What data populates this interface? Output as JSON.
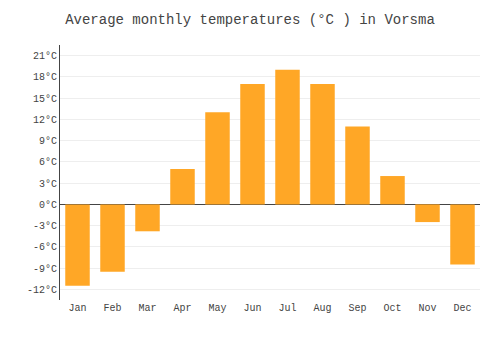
{
  "chart_data": {
    "type": "bar",
    "title": "Average monthly temperatures (°C ) in Vorsma",
    "categories": [
      "Jan",
      "Feb",
      "Mar",
      "Apr",
      "May",
      "Jun",
      "Jul",
      "Aug",
      "Sep",
      "Oct",
      "Nov",
      "Dec"
    ],
    "values": [
      -11.5,
      -9.5,
      -3.8,
      5.0,
      13.0,
      17.0,
      19.0,
      17.0,
      11.0,
      4.0,
      -2.5,
      -8.5
    ],
    "color": "#FFA726",
    "ylim": [
      -13.5,
      22.5
    ],
    "yticks": [
      {
        "value": -12,
        "label": "-12°C"
      },
      {
        "value": -9,
        "label": "-9°C"
      },
      {
        "value": -6,
        "label": "-6°C"
      },
      {
        "value": -3,
        "label": "-3°C"
      },
      {
        "value": 0,
        "label": "0°C"
      },
      {
        "value": 3,
        "label": "3°C"
      },
      {
        "value": 6,
        "label": "6°C"
      },
      {
        "value": 9,
        "label": "9°C"
      },
      {
        "value": 12,
        "label": "12°C"
      },
      {
        "value": 15,
        "label": "15°C"
      },
      {
        "value": 18,
        "label": "18°C"
      },
      {
        "value": 21,
        "label": "21°C"
      }
    ],
    "grid": true
  }
}
